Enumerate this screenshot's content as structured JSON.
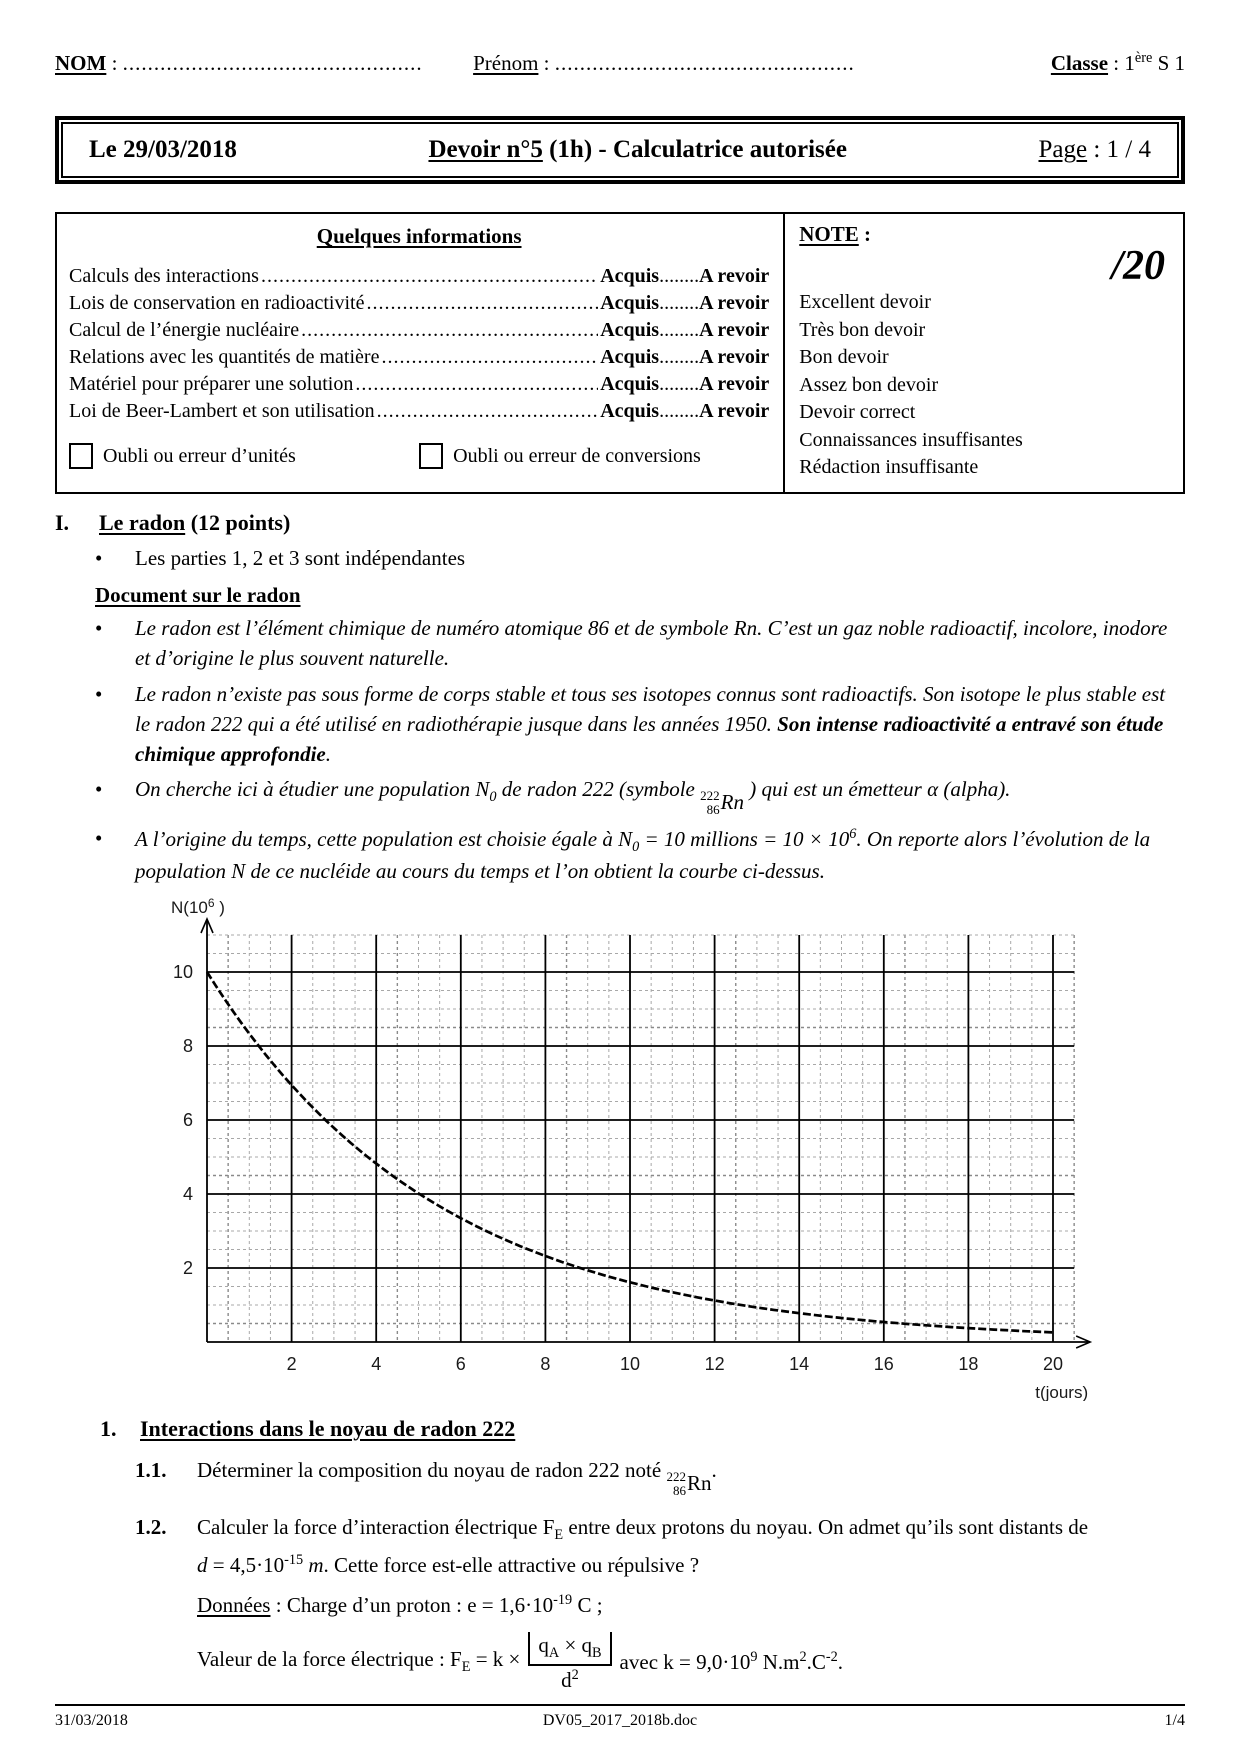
{
  "header": {
    "nom_label": "NOM",
    "nom_sep": " : ",
    "nom_dots": "................................................",
    "prenom_label": "Prénom",
    "prenom_sep": " : ",
    "prenom_dots": "................................................",
    "classe_label": "Classe",
    "classe_sep": " : ",
    "classe_num": "1",
    "classe_sup": "ère",
    "classe_rest": " S 1"
  },
  "titlebar": {
    "date": "Le 29/03/2018",
    "title_underlined": "Devoir n°5",
    "title_rest": " (1h) - Calculatrice autorisée",
    "page_label": "Page",
    "page_value": " : 1 / 4"
  },
  "info": {
    "title": "Quelques informations",
    "skills": [
      "Calculs des interactions",
      "Lois de conservation en radioactivité",
      "Calcul de l’énergie nucléaire",
      "Relations avec les quantités de matière",
      "Matériel pour préparer une solution",
      "Loi de Beer-Lambert et son utilisation"
    ],
    "leader_dots": "....................................................................................................................",
    "acquis": "Acquis",
    "mid_dots": "........",
    "a_revoir": "A revoir",
    "checkbox_units": "Oubli ou erreur d’unités",
    "checkbox_conversions": "Oubli ou erreur de conversions",
    "note_label": "NOTE",
    "note_colon": " :",
    "score": "/20",
    "grades": [
      "Excellent devoir",
      "Très bon devoir",
      "Bon devoir",
      "Assez bon devoir",
      "Devoir correct",
      "Connaissances insuffisantes",
      "Rédaction insuffisante"
    ]
  },
  "part1": {
    "numeral": "I.",
    "title": "Le radon",
    "points": " (12 points)",
    "bullet_parties": "Les parties 1, 2 et 3 sont indépendantes",
    "doc_title": "Document sur le radon",
    "b1": "Le radon est l’élément chimique de numéro atomique 86 et de symbole Rn. C’est un gaz noble radioactif, incolore, inodore et d’origine le plus souvent naturelle.",
    "b2_normal": "Le radon n’existe pas sous forme de corps stable et tous ses isotopes connus sont radioactifs. Son isotope le plus stable est le radon 222 qui a été utilisé en radiothérapie jusque dans les années 1950. ",
    "b2_bold": "Son intense radioactivité a entravé son étude chimique approfondie",
    "b2_period": ".",
    "b3_pre": "On cherche ici à étudier une population N",
    "b3_sub": "0",
    "b3_mid": " de radon 222 (symbole ",
    "nuclide_mass": "222",
    "nuclide_z": "86",
    "nuclide_sym": "Rn",
    "b3_post": " ) qui est un émetteur α (alpha).",
    "b4_pre": "A l’origine du temps, cette population est choisie égale à N",
    "b4_sub": "0",
    "b4_mid": " = 10 millions = 10 × 10",
    "b4_sup": "6",
    "b4_post": ". On reporte alors l’évolution de la population N de ce nucléide au cours du temps et l’on obtient la courbe ci-dessus."
  },
  "chart_data": {
    "type": "line",
    "xlabel": "t(jours)",
    "ylabel_main": "N(10",
    "ylabel_sup": "6",
    "ylabel_end": " )",
    "xlim": [
      0,
      20.5
    ],
    "ylim": [
      0,
      11
    ],
    "xticks": [
      2,
      4,
      6,
      8,
      10,
      12,
      14,
      16,
      18,
      20
    ],
    "yticks": [
      2,
      4,
      6,
      8,
      10
    ],
    "grid": "major solid every 2 units, minor dashed every 0.5 units",
    "legend_position": "none",
    "series": [
      {
        "name": "N, population de noyaux de radon 222 (en millions)",
        "n0": 10,
        "half_life_days": 3.8,
        "x": [
          0,
          1,
          2,
          3,
          4,
          5,
          6,
          7,
          8,
          9,
          10,
          11,
          12,
          13,
          14,
          15,
          16,
          17,
          18,
          19,
          20
        ],
        "values": [
          10,
          8.33,
          6.94,
          5.79,
          4.82,
          4.02,
          3.35,
          2.79,
          2.33,
          1.94,
          1.62,
          1.35,
          1.12,
          0.94,
          0.78,
          0.65,
          0.54,
          0.45,
          0.38,
          0.31,
          0.26
        ]
      }
    ]
  },
  "questions": {
    "sec_num": "1.",
    "sec_title": "Interactions dans le noyau de radon 222",
    "q11_num": "1.1.",
    "q11_pre": "Déterminer la composition du noyau de radon 222 noté ",
    "q11_post": ".",
    "q12_num": "1.2.",
    "q12_l1_pre": "Calculer la force d’interaction électrique F",
    "q12_l1_sub": "E",
    "q12_l1_post": " entre deux protons du noyau. On admet qu’ils sont distants de",
    "q12_d": "d",
    "q12_eq": " = 4,5·10",
    "q12_exp": "-15",
    "q12_unit": " m",
    "q12_end": ". Cette force est-elle attractive ou répulsive ?",
    "donnees_label": "Données",
    "donnees_pre": " : Charge d’un proton : e = 1,6·10",
    "donnees_exp": "-19",
    "donnees_post": " C ;",
    "formula_intro": "Valeur de la force électrique : F",
    "formula_intro_sub": "E",
    "formula_eq": " = k ×",
    "f_qa": "q",
    "f_qa_sub": "A",
    "f_times": " × ",
    "f_qb": "q",
    "f_qb_sub": "B",
    "f_den": "d",
    "f_den_sup": "2",
    "formula_post": " avec k = 9,0·10",
    "formula_post_sup": "9",
    "formula_u1": " N.m",
    "formula_u1_sup": "2",
    "formula_u2": ".C",
    "formula_u2_sup": "-2",
    "formula_end": "."
  },
  "footer": {
    "date": "31/03/2018",
    "filename": "DV05_2017_2018b.doc",
    "page": "1/4"
  }
}
